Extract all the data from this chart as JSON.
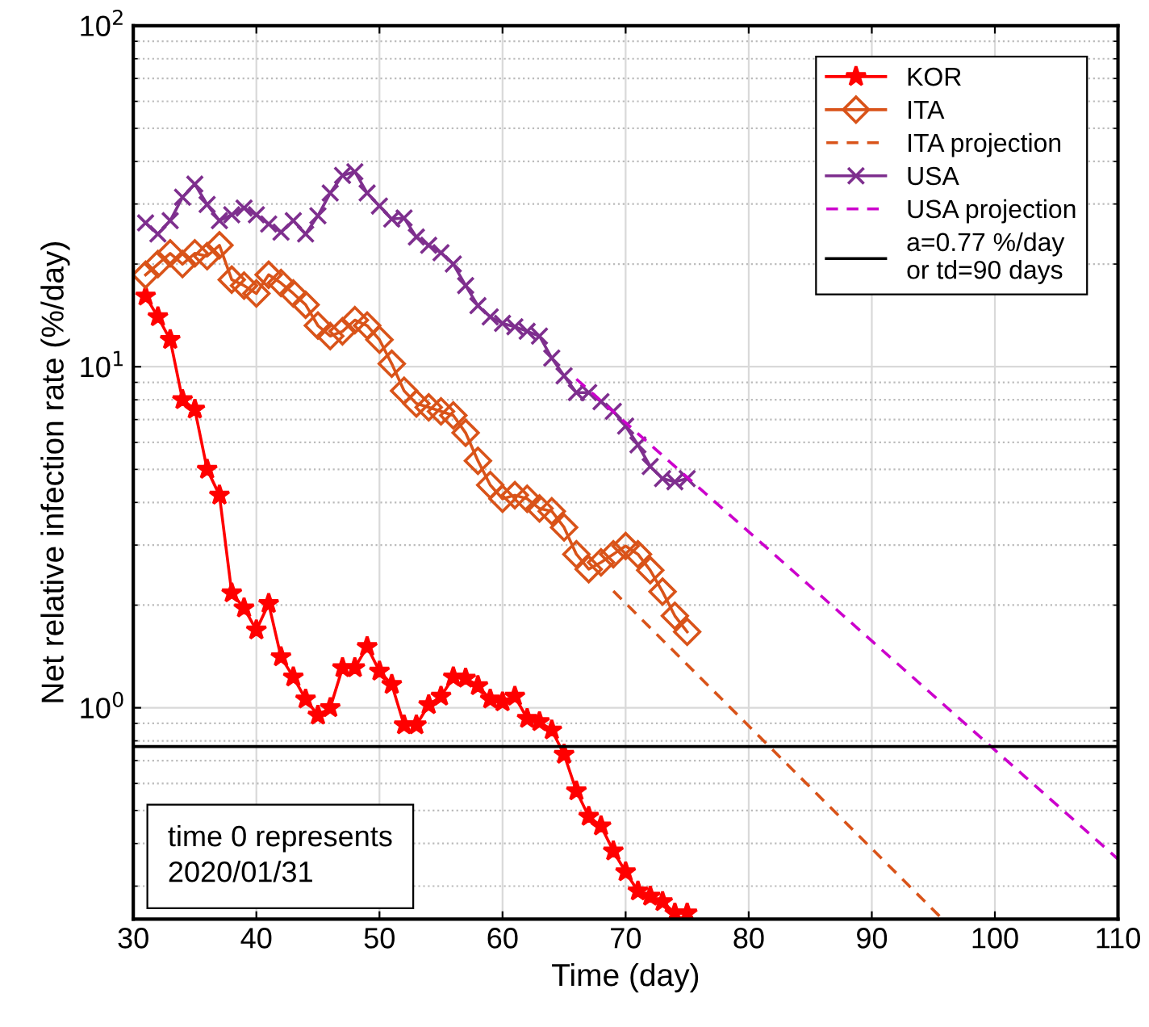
{
  "chart_data": {
    "type": "line",
    "xlabel": "Time (day)",
    "ylabel": "Net relative infection rate (%/day)",
    "xlim": [
      30,
      110
    ],
    "xticks": [
      30,
      40,
      50,
      60,
      70,
      80,
      90,
      100,
      110
    ],
    "ylim": [
      0.24,
      100
    ],
    "log": "y",
    "yticks": [
      {
        "value": 1,
        "label": "10$^{0}$"
      },
      {
        "value": 10,
        "label": "10$^{1}$"
      },
      {
        "value": 100,
        "label": "10$^{2}$"
      }
    ],
    "grid": true,
    "legend": "top right",
    "x": [
      31,
      32,
      33,
      34,
      35,
      36,
      37,
      38,
      39,
      40,
      41,
      42,
      43,
      44,
      45,
      46,
      47,
      48,
      49,
      50,
      51,
      52,
      53,
      54,
      55,
      56,
      57,
      58,
      59,
      60,
      61,
      62,
      63,
      64,
      65,
      66,
      67,
      68,
      69,
      70,
      71,
      72,
      73,
      74,
      75
    ],
    "series": [
      {
        "name": "KOR",
        "color": "#ff0000",
        "marker": "star",
        "line_style": "solid",
        "values": [
          16.1,
          14.0,
          12.0,
          8.0,
          7.5,
          5.0,
          4.2,
          2.17,
          1.96,
          1.69,
          2.02,
          1.41,
          1.23,
          1.06,
          0.95,
          1.0,
          1.31,
          1.31,
          1.51,
          1.28,
          1.17,
          0.89,
          0.89,
          1.02,
          1.08,
          1.23,
          1.22,
          1.16,
          1.06,
          1.04,
          1.08,
          0.93,
          0.91,
          0.86,
          0.73,
          0.57,
          0.48,
          0.45,
          0.38,
          0.33,
          0.29,
          0.28,
          0.27,
          0.25,
          0.25
        ]
      },
      {
        "name": "ITA",
        "color": "#d95319",
        "marker": "diamond",
        "line_style": "solid",
        "values": [
          18.6,
          20.0,
          21.5,
          20.0,
          21.5,
          21.1,
          22.7,
          18.0,
          17.3,
          16.4,
          18.6,
          17.6,
          16.4,
          15.2,
          13.2,
          12.3,
          12.7,
          13.7,
          13.2,
          12.0,
          10.2,
          8.5,
          7.8,
          7.6,
          7.4,
          7.2,
          6.4,
          5.3,
          4.5,
          4.1,
          4.2,
          4.1,
          3.84,
          3.77,
          3.38,
          2.82,
          2.55,
          2.67,
          2.82,
          2.98,
          2.82,
          2.53,
          2.19,
          1.86,
          1.67
        ]
      },
      {
        "name": "ITA projection",
        "color": "#d95319",
        "marker": "none",
        "line_style": "dashed",
        "x": [
          69,
          95.5
        ],
        "values": [
          2.2,
          0.245
        ]
      },
      {
        "name": "USA",
        "color": "#7e2f8e",
        "marker": "cross",
        "line_style": "solid",
        "values": [
          26.4,
          24.5,
          26.8,
          31.4,
          34.3,
          29.9,
          26.8,
          27.9,
          29.2,
          27.9,
          26.2,
          24.8,
          26.8,
          24.5,
          27.7,
          32.3,
          36.4,
          37.3,
          32.3,
          29.6,
          27.1,
          27.3,
          24.0,
          22.7,
          21.6,
          20.0,
          17.3,
          15.1,
          14.0,
          13.4,
          13.1,
          12.7,
          12.3,
          10.6,
          9.4,
          8.4,
          8.4,
          7.9,
          7.4,
          6.7,
          5.9,
          5.1,
          4.7,
          4.6,
          4.7
        ]
      },
      {
        "name": "USA projection",
        "color": "#cc00cc",
        "marker": "none",
        "line_style": "dashed",
        "x": [
          66,
          110
        ],
        "values": [
          9.2,
          0.36
        ]
      }
    ],
    "ref_lines": [
      {
        "axis": "y",
        "value": 0.77,
        "label": "a=0.77 %/day\nor td=90 days",
        "color": "#000000",
        "line_style": "solid"
      }
    ],
    "annotations": [
      "time 0 represents\n2020/01/31"
    ]
  }
}
